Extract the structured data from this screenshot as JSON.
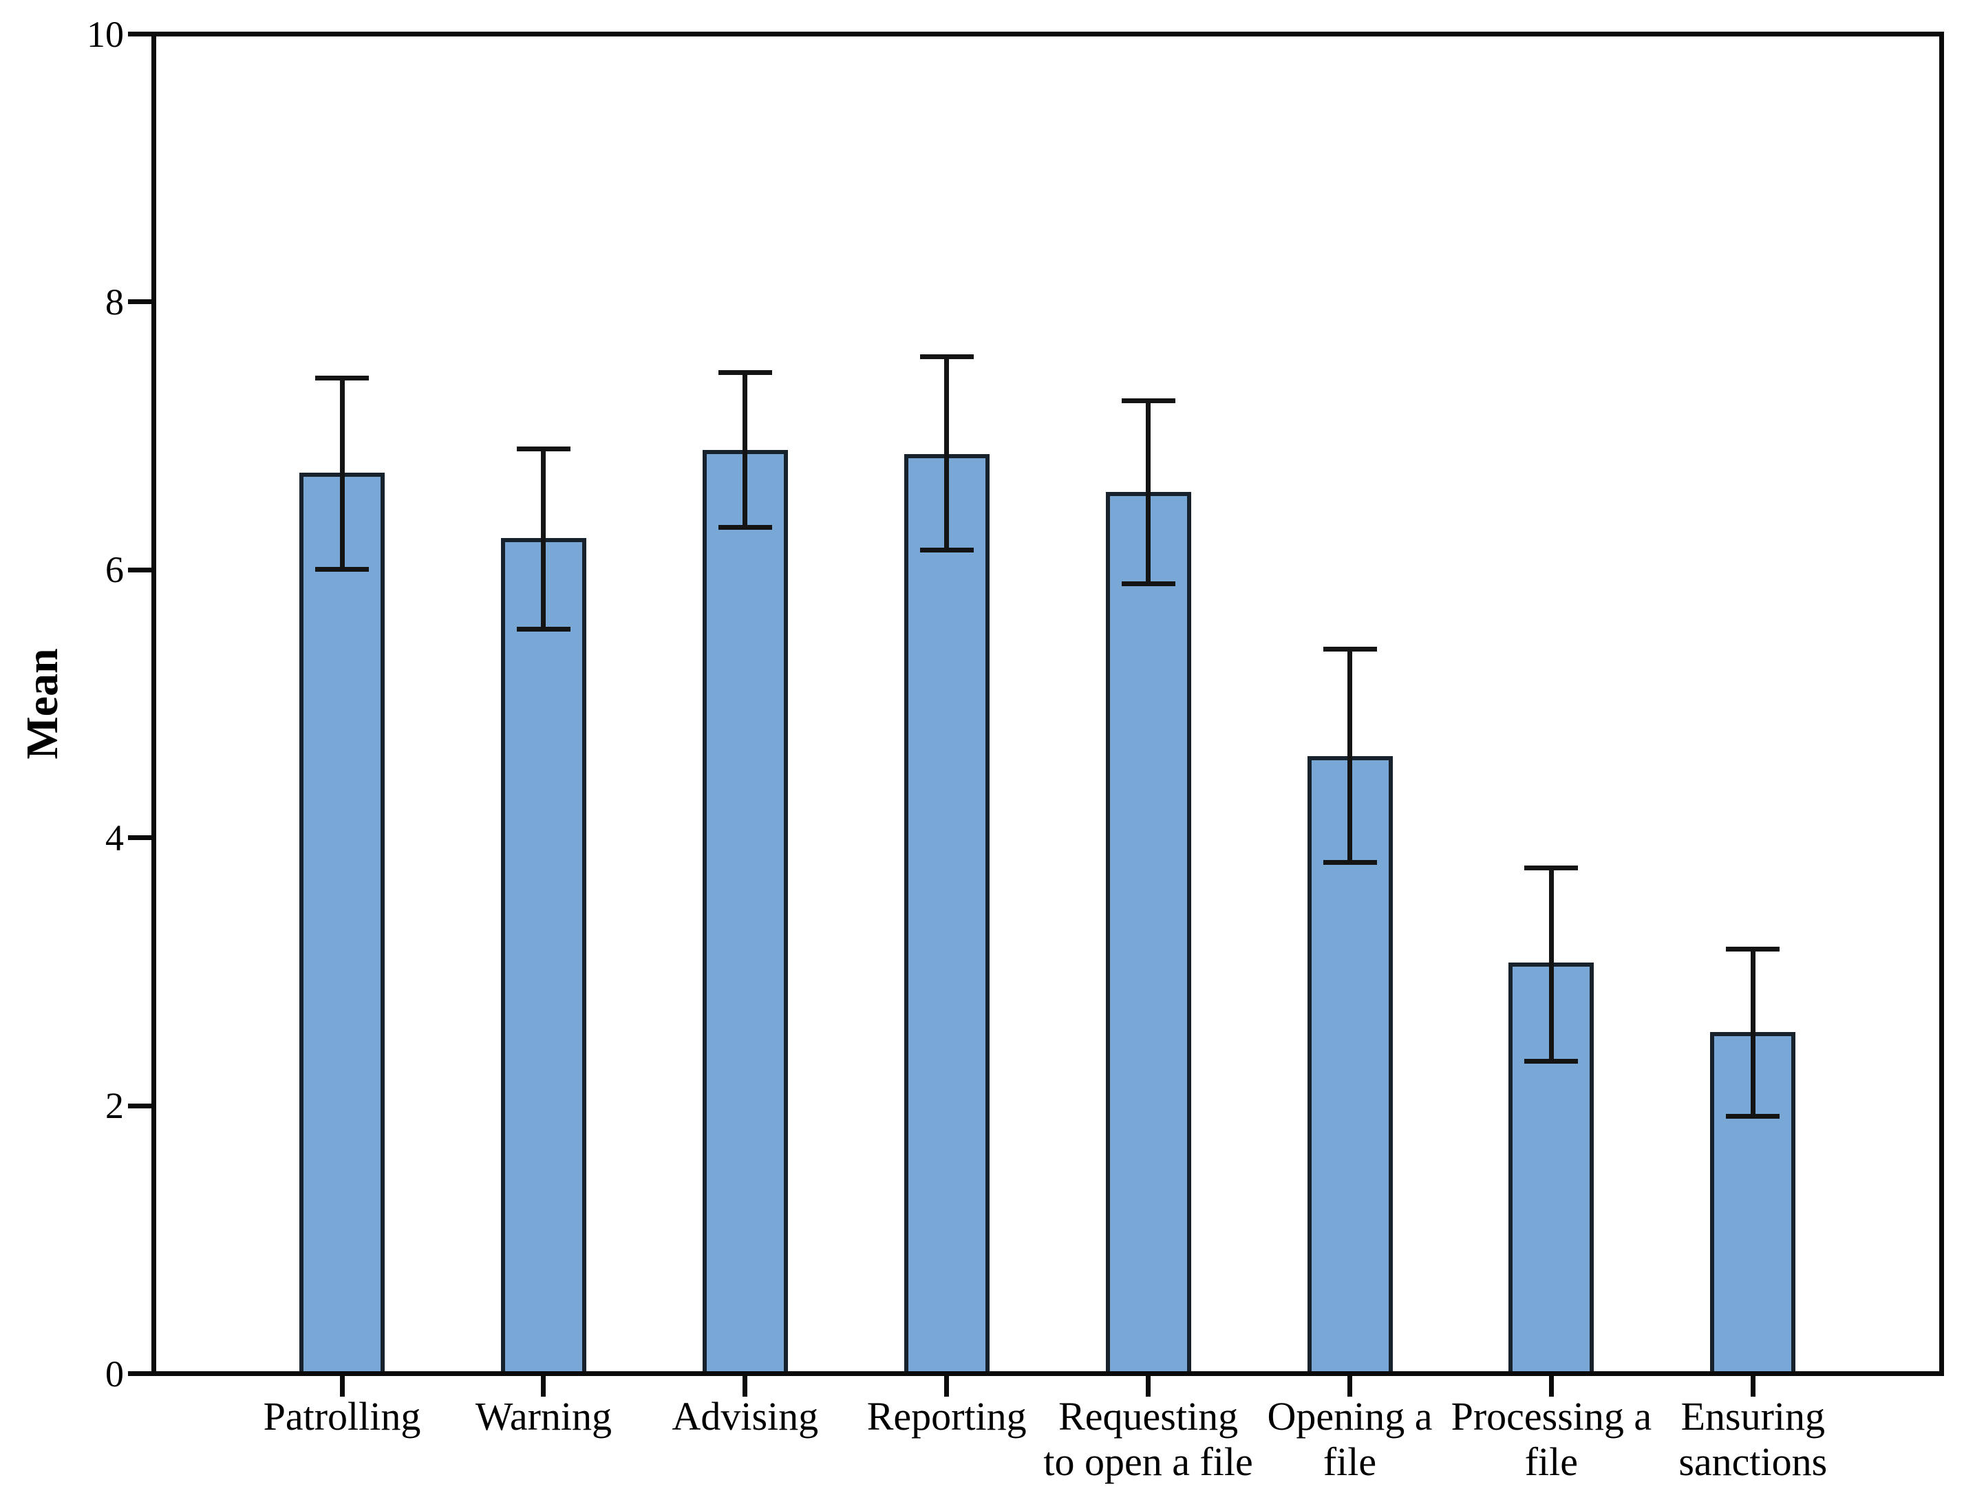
{
  "chart_data": {
    "type": "bar",
    "title": "",
    "xlabel": "",
    "ylabel": "Mean",
    "ylim": [
      0,
      10
    ],
    "yticks": [
      0,
      2,
      4,
      6,
      8,
      10
    ],
    "ytick_labels": [
      "0",
      "2",
      "4",
      "6",
      "8",
      "10"
    ],
    "grid": false,
    "legend": null,
    "categories": [
      "Patrolling",
      "Warning",
      "Advising",
      "Reporting",
      "Requesting to open a file",
      "Opening a file",
      "Processing a file",
      "Ensuring sanctions"
    ],
    "category_label_lines": [
      [
        "Patrolling"
      ],
      [
        "Warning"
      ],
      [
        "Advising"
      ],
      [
        "Reporting"
      ],
      [
        "Requesting",
        "to open a file"
      ],
      [
        "Opening a",
        "file"
      ],
      [
        "Processing a",
        "file"
      ],
      [
        "Ensuring",
        "sanctions"
      ]
    ],
    "values": [
      6.73,
      6.24,
      6.9,
      6.87,
      6.59,
      4.61,
      3.06,
      2.54
    ],
    "error_low": [
      6.01,
      5.56,
      6.32,
      6.15,
      5.9,
      3.81,
      2.32,
      1.91
    ],
    "error_high": [
      7.44,
      6.91,
      7.48,
      7.6,
      7.27,
      5.41,
      3.77,
      3.16
    ],
    "colors": {
      "bar_fill": "#79A8D6",
      "bar_border": "#18222c",
      "error_bar": "#141414",
      "axis": "#0b0b0b",
      "background": "#ffffff",
      "text": "#000000"
    }
  }
}
